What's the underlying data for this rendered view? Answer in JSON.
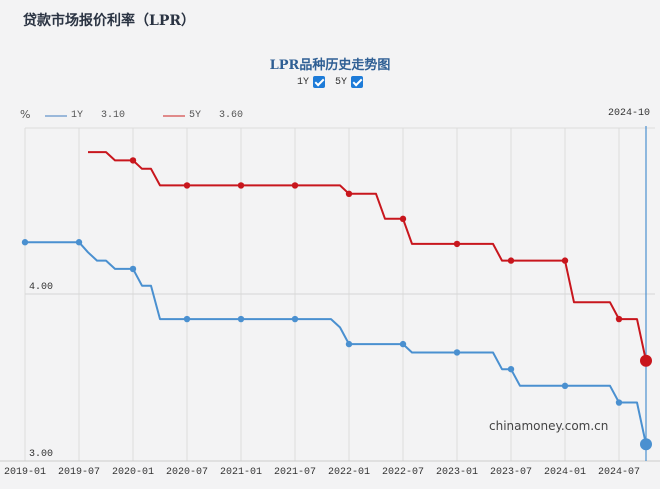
{
  "page": {
    "title": "贷款市场报价利率（LPR）"
  },
  "chart_header": {
    "title": "LPR品种历史走势图",
    "toggles": [
      {
        "label": "1Y",
        "checked": true
      },
      {
        "label": "5Y",
        "checked": true
      }
    ]
  },
  "legend": {
    "unit": "%",
    "items": [
      {
        "label": "1Y",
        "value": "3.10",
        "color": "#4a90d0"
      },
      {
        "label": "5Y",
        "value": "3.60",
        "color": "#e05a5a"
      }
    ],
    "cursor_date": "2024-10"
  },
  "watermark": "chinamoney.com.cn",
  "colors": {
    "series_1y": "#4a90d0",
    "series_5y": "#c8161d",
    "grid": "#dddddd",
    "cursor": "#4a90d0"
  },
  "chart_data": {
    "type": "line",
    "title": "LPR品种历史走势图",
    "xlabel": "",
    "ylabel": "%",
    "ylim": [
      3.0,
      4.95
    ],
    "xlim": [
      "2019-01",
      "2024-10"
    ],
    "x_ticks": [
      "2019-01",
      "2019-07",
      "2020-01",
      "2020-07",
      "2021-01",
      "2021-07",
      "2022-01",
      "2022-07",
      "2023-01",
      "2023-07",
      "2024-01",
      "2024-07"
    ],
    "y_ticks": [
      "3.00",
      "4.00"
    ],
    "grid": true,
    "legend_position": "top-left",
    "series": [
      {
        "name": "1Y",
        "color": "#4a90d0",
        "points": [
          [
            "2019-01",
            4.31
          ],
          [
            "2019-07",
            4.31
          ],
          [
            "2019-08",
            4.25
          ],
          [
            "2019-09",
            4.2
          ],
          [
            "2019-10",
            4.2
          ],
          [
            "2019-11",
            4.15
          ],
          [
            "2019-12",
            4.15
          ],
          [
            "2020-01",
            4.15
          ],
          [
            "2020-02",
            4.05
          ],
          [
            "2020-03",
            4.05
          ],
          [
            "2020-04",
            3.85
          ],
          [
            "2020-07",
            3.85
          ],
          [
            "2021-01",
            3.85
          ],
          [
            "2021-07",
            3.85
          ],
          [
            "2021-11",
            3.85
          ],
          [
            "2021-12",
            3.8
          ],
          [
            "2022-01",
            3.7
          ],
          [
            "2022-07",
            3.7
          ],
          [
            "2022-08",
            3.65
          ],
          [
            "2023-01",
            3.65
          ],
          [
            "2023-05",
            3.65
          ],
          [
            "2023-06",
            3.55
          ],
          [
            "2023-07",
            3.55
          ],
          [
            "2023-08",
            3.45
          ],
          [
            "2024-01",
            3.45
          ],
          [
            "2024-06",
            3.45
          ],
          [
            "2024-07",
            3.35
          ],
          [
            "2024-09",
            3.35
          ],
          [
            "2024-10",
            3.1
          ]
        ]
      },
      {
        "name": "5Y",
        "color": "#c8161d",
        "points": [
          [
            "2019-08",
            4.85
          ],
          [
            "2019-10",
            4.85
          ],
          [
            "2019-11",
            4.8
          ],
          [
            "2019-12",
            4.8
          ],
          [
            "2020-01",
            4.8
          ],
          [
            "2020-02",
            4.75
          ],
          [
            "2020-03",
            4.75
          ],
          [
            "2020-04",
            4.65
          ],
          [
            "2020-07",
            4.65
          ],
          [
            "2021-01",
            4.65
          ],
          [
            "2021-07",
            4.65
          ],
          [
            "2021-12",
            4.65
          ],
          [
            "2022-01",
            4.6
          ],
          [
            "2022-04",
            4.6
          ],
          [
            "2022-05",
            4.45
          ],
          [
            "2022-07",
            4.45
          ],
          [
            "2022-08",
            4.3
          ],
          [
            "2023-01",
            4.3
          ],
          [
            "2023-05",
            4.3
          ],
          [
            "2023-06",
            4.2
          ],
          [
            "2023-07",
            4.2
          ],
          [
            "2024-01",
            4.2
          ],
          [
            "2024-02",
            3.95
          ],
          [
            "2024-06",
            3.95
          ],
          [
            "2024-07",
            3.85
          ],
          [
            "2024-09",
            3.85
          ],
          [
            "2024-10",
            3.6
          ]
        ]
      }
    ],
    "current_values": {
      "date": "2024-10",
      "1Y": 3.1,
      "5Y": 3.6
    }
  }
}
